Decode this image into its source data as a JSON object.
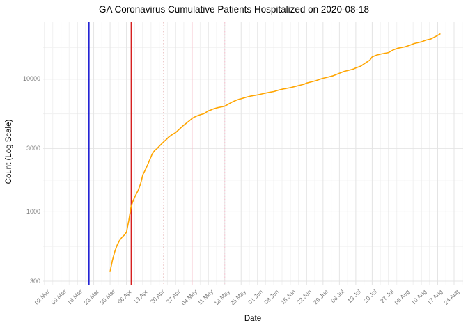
{
  "title": "GA Coronavirus Cumulative Patients Hospitalized on 2020-08-18",
  "chart_data": {
    "type": "line",
    "title": "GA Coronavirus Cumulative Patients Hospitalized on 2020-08-18",
    "xlabel": "Date",
    "ylabel": "Count (Log Scale)",
    "y_scale": "log10",
    "ylim": [
      283,
      26000
    ],
    "grid": "on",
    "legend": "none",
    "y_ticks_major": [
      300,
      1000,
      3000,
      10000
    ],
    "y_tick_labels": [
      "300",
      "1000",
      "3000",
      "10000"
    ],
    "y_ticks_minor": [
      548,
      1732,
      5477,
      17320
    ],
    "x_origin_date": "2020-03-02",
    "x_tick_interval_days": 7,
    "x_tick_labels": [
      "02 Mar",
      "09 Mar",
      "16 Mar",
      "23 Mar",
      "30 Mar",
      "06 Apr",
      "13 Apr",
      "20 Apr",
      "27 Apr",
      "04 May",
      "11 May",
      "18 May",
      "25 May",
      "01 Jun",
      "08 Jun",
      "15 Jun",
      "22 Jun",
      "29 Jun",
      "06 Jul",
      "13 Jul",
      "20 Jul",
      "27 Jul",
      "03 Aug",
      "10 Aug",
      "17 Aug",
      "24 Aug"
    ],
    "event_lines": [
      {
        "name": "event-line-blue-solid",
        "date": "2020-03-21",
        "style": "solid",
        "color": "#0000CD"
      },
      {
        "name": "event-line-red-solid",
        "date": "2020-04-08",
        "style": "solid",
        "color": "#D62020"
      },
      {
        "name": "event-line-red-dotted",
        "date": "2020-04-22",
        "style": "dotted",
        "color": "#B22222"
      },
      {
        "name": "event-line-pink-solid",
        "date": "2020-05-04",
        "style": "solid",
        "color": "#F7B6C2"
      },
      {
        "name": "event-line-pink-dotted",
        "date": "2020-05-18",
        "style": "dotted",
        "color": "#F9C6D3"
      }
    ],
    "series": [
      {
        "name": "cumulative_patients_hospitalized",
        "color": "#FFA500",
        "points": [
          [
            "2020-03-30",
            355
          ],
          [
            "2020-03-31",
            430
          ],
          [
            "2020-04-01",
            500
          ],
          [
            "2020-04-02",
            560
          ],
          [
            "2020-04-03",
            605
          ],
          [
            "2020-04-04",
            640
          ],
          [
            "2020-04-05",
            665
          ],
          [
            "2020-04-06",
            700
          ],
          [
            "2020-04-07",
            860
          ],
          [
            "2020-04-08",
            1100
          ],
          [
            "2020-04-09",
            1230
          ],
          [
            "2020-04-10",
            1340
          ],
          [
            "2020-04-11",
            1450
          ],
          [
            "2020-04-12",
            1620
          ],
          [
            "2020-04-13",
            1900
          ],
          [
            "2020-04-14",
            2060
          ],
          [
            "2020-04-15",
            2250
          ],
          [
            "2020-04-16",
            2480
          ],
          [
            "2020-04-17",
            2730
          ],
          [
            "2020-04-18",
            2890
          ],
          [
            "2020-04-19",
            2990
          ],
          [
            "2020-04-20",
            3120
          ],
          [
            "2020-04-21",
            3250
          ],
          [
            "2020-04-22",
            3380
          ],
          [
            "2020-04-23",
            3500
          ],
          [
            "2020-04-24",
            3650
          ],
          [
            "2020-04-25",
            3760
          ],
          [
            "2020-04-26",
            3860
          ],
          [
            "2020-04-27",
            3950
          ],
          [
            "2020-04-28",
            4100
          ],
          [
            "2020-04-29",
            4260
          ],
          [
            "2020-04-30",
            4420
          ],
          [
            "2020-05-01",
            4570
          ],
          [
            "2020-05-02",
            4720
          ],
          [
            "2020-05-03",
            4870
          ],
          [
            "2020-05-04",
            5050
          ],
          [
            "2020-05-05",
            5170
          ],
          [
            "2020-05-06",
            5270
          ],
          [
            "2020-05-07",
            5350
          ],
          [
            "2020-05-08",
            5420
          ],
          [
            "2020-05-09",
            5480
          ],
          [
            "2020-05-10",
            5620
          ],
          [
            "2020-05-11",
            5770
          ],
          [
            "2020-05-12",
            5850
          ],
          [
            "2020-05-13",
            5950
          ],
          [
            "2020-05-14",
            6020
          ],
          [
            "2020-05-15",
            6100
          ],
          [
            "2020-05-16",
            6150
          ],
          [
            "2020-05-17",
            6200
          ],
          [
            "2020-05-18",
            6260
          ],
          [
            "2020-05-19",
            6400
          ],
          [
            "2020-05-20",
            6550
          ],
          [
            "2020-05-21",
            6700
          ],
          [
            "2020-05-22",
            6820
          ],
          [
            "2020-05-23",
            6950
          ],
          [
            "2020-05-24",
            7050
          ],
          [
            "2020-05-25",
            7120
          ],
          [
            "2020-05-27",
            7300
          ],
          [
            "2020-05-29",
            7450
          ],
          [
            "2020-05-31",
            7550
          ],
          [
            "2020-06-02",
            7680
          ],
          [
            "2020-06-04",
            7820
          ],
          [
            "2020-06-06",
            7950
          ],
          [
            "2020-06-08",
            8070
          ],
          [
            "2020-06-10",
            8270
          ],
          [
            "2020-06-12",
            8440
          ],
          [
            "2020-06-14",
            8560
          ],
          [
            "2020-06-15",
            8620
          ],
          [
            "2020-06-17",
            8800
          ],
          [
            "2020-06-19",
            8980
          ],
          [
            "2020-06-21",
            9170
          ],
          [
            "2020-06-22",
            9350
          ],
          [
            "2020-06-24",
            9540
          ],
          [
            "2020-06-26",
            9740
          ],
          [
            "2020-06-28",
            10030
          ],
          [
            "2020-06-29",
            10150
          ],
          [
            "2020-07-01",
            10350
          ],
          [
            "2020-07-03",
            10570
          ],
          [
            "2020-07-05",
            10900
          ],
          [
            "2020-07-06",
            11070
          ],
          [
            "2020-07-08",
            11440
          ],
          [
            "2020-07-10",
            11670
          ],
          [
            "2020-07-12",
            11900
          ],
          [
            "2020-07-13",
            12150
          ],
          [
            "2020-07-15",
            12500
          ],
          [
            "2020-07-17",
            13200
          ],
          [
            "2020-07-19",
            13900
          ],
          [
            "2020-07-20",
            14700
          ],
          [
            "2020-07-22",
            15200
          ],
          [
            "2020-07-24",
            15500
          ],
          [
            "2020-07-27",
            15860
          ],
          [
            "2020-07-29",
            16600
          ],
          [
            "2020-07-31",
            17100
          ],
          [
            "2020-08-03",
            17500
          ],
          [
            "2020-08-05",
            18000
          ],
          [
            "2020-08-07",
            18560
          ],
          [
            "2020-08-10",
            19100
          ],
          [
            "2020-08-12",
            19700
          ],
          [
            "2020-08-14",
            20060
          ],
          [
            "2020-08-16",
            20900
          ],
          [
            "2020-08-17",
            21400
          ],
          [
            "2020-08-18",
            21900
          ]
        ]
      }
    ],
    "colors": {
      "line": "#FFA500",
      "grid_major": "#E4E4E4",
      "grid_minor": "#F1F1F1",
      "tick_text": "#7b7b7b",
      "background": "#FFFFFF"
    }
  }
}
